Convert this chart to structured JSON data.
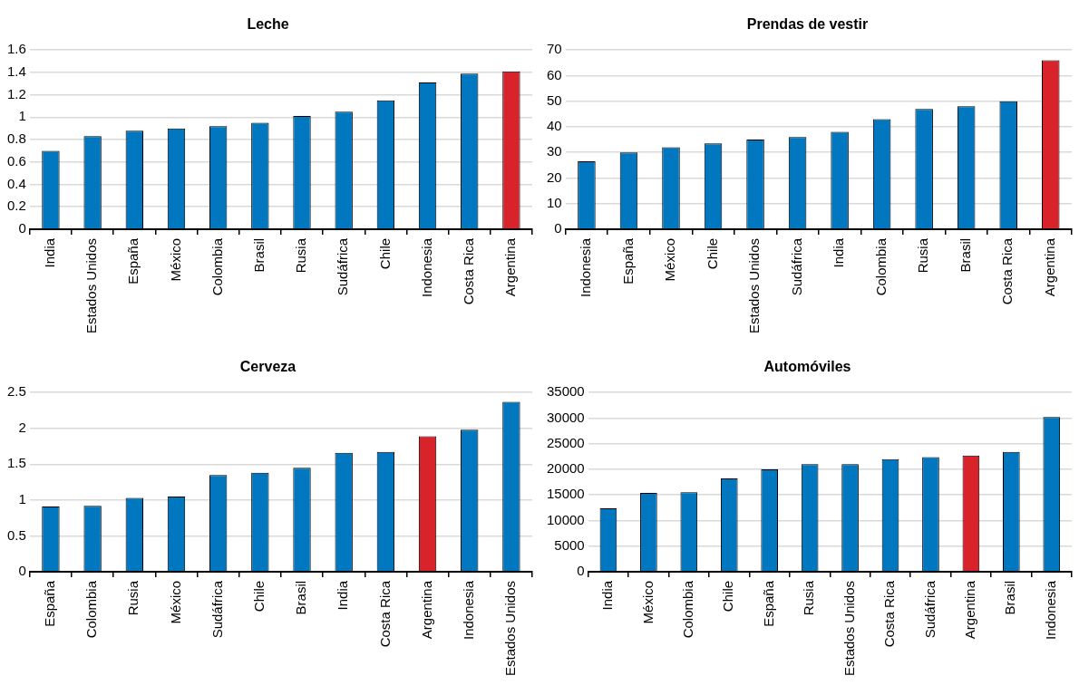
{
  "chart_data": [
    {
      "type": "bar",
      "title": "Leche",
      "categories": [
        "India",
        "Estados Unidos",
        "España",
        "México",
        "Colombia",
        "Brasil",
        "Rusia",
        "Sudáfrica",
        "Chile",
        "Indonesia",
        "Costa Rica",
        "Argentina"
      ],
      "values": [
        0.7,
        0.83,
        0.88,
        0.9,
        0.92,
        0.95,
        1.01,
        1.05,
        1.15,
        1.31,
        1.39,
        1.41
      ],
      "colors": [
        "#0077bf",
        "#0077bf",
        "#0077bf",
        "#0077bf",
        "#0077bf",
        "#0077bf",
        "#0077bf",
        "#0077bf",
        "#0077bf",
        "#0077bf",
        "#0077bf",
        "#d9232a"
      ],
      "ylim": [
        0,
        1.6
      ],
      "yticks": [
        0,
        0.2,
        0.4,
        0.6,
        0.8,
        1,
        1.2,
        1.4,
        1.6
      ],
      "grid": "y",
      "legend": false
    },
    {
      "type": "bar",
      "title": "Prendas de vestir",
      "categories": [
        "Indonesia",
        "España",
        "México",
        "Chile",
        "Estados Unidos",
        "Sudáfrica",
        "India",
        "Colombia",
        "Rusia",
        "Brasil",
        "Costa Rica",
        "Argentina"
      ],
      "values": [
        26.5,
        30,
        32,
        33.5,
        35,
        36,
        38,
        43,
        47,
        48,
        50,
        66
      ],
      "colors": [
        "#0077bf",
        "#0077bf",
        "#0077bf",
        "#0077bf",
        "#0077bf",
        "#0077bf",
        "#0077bf",
        "#0077bf",
        "#0077bf",
        "#0077bf",
        "#0077bf",
        "#d9232a"
      ],
      "ylim": [
        0,
        70
      ],
      "yticks": [
        0,
        10,
        20,
        30,
        40,
        50,
        60,
        70
      ],
      "grid": "y",
      "legend": false
    },
    {
      "type": "bar",
      "title": "Cerveza",
      "categories": [
        "España",
        "Colombia",
        "Rusia",
        "México",
        "Sudáfrica",
        "Chile",
        "Brasil",
        "India",
        "Costa Rica",
        "Argentina",
        "Indonesia",
        "Estados Unidos"
      ],
      "values": [
        0.91,
        0.92,
        1.03,
        1.05,
        1.35,
        1.38,
        1.45,
        1.66,
        1.67,
        1.89,
        1.98,
        2.37
      ],
      "colors": [
        "#0077bf",
        "#0077bf",
        "#0077bf",
        "#0077bf",
        "#0077bf",
        "#0077bf",
        "#0077bf",
        "#0077bf",
        "#0077bf",
        "#d9232a",
        "#0077bf",
        "#0077bf"
      ],
      "ylim": [
        0,
        2.5
      ],
      "yticks": [
        0,
        0.5,
        1,
        1.5,
        2,
        2.5
      ],
      "grid": "y",
      "legend": false
    },
    {
      "type": "bar",
      "title": "Automóviles",
      "categories": [
        "India",
        "México",
        "Colombia",
        "Chile",
        "España",
        "Rusia",
        "Estados Unidos",
        "Costa Rica",
        "Sudáfrica",
        "Argentina",
        "Brasil",
        "Indonesia"
      ],
      "values": [
        12400,
        15400,
        15500,
        18200,
        20000,
        21000,
        21000,
        22000,
        22400,
        22700,
        23400,
        30200
      ],
      "colors": [
        "#0077bf",
        "#0077bf",
        "#0077bf",
        "#0077bf",
        "#0077bf",
        "#0077bf",
        "#0077bf",
        "#0077bf",
        "#0077bf",
        "#d9232a",
        "#0077bf",
        "#0077bf"
      ],
      "ylim": [
        0,
        35000
      ],
      "yticks": [
        0,
        5000,
        10000,
        15000,
        20000,
        25000,
        30000,
        35000
      ],
      "grid": "y",
      "legend": false
    }
  ]
}
